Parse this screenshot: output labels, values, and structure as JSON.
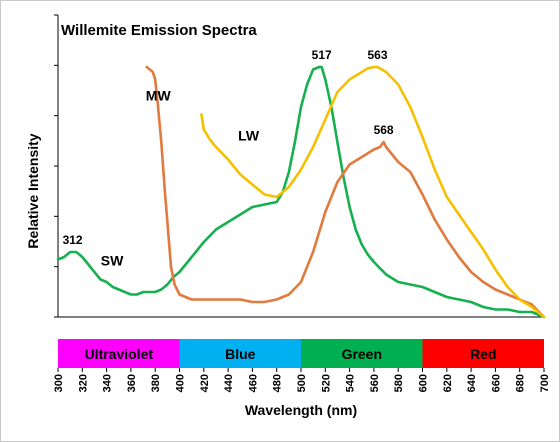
{
  "chart_data": {
    "type": "line",
    "title": "Willemite Emission Spectra",
    "xlabel": "Wavelength (nm)",
    "ylabel": "Relative Intensity",
    "xlim": [
      300,
      700
    ],
    "ylim": [
      0,
      1.0
    ],
    "x_ticks": [
      300,
      320,
      340,
      360,
      380,
      400,
      420,
      440,
      460,
      480,
      500,
      520,
      540,
      560,
      580,
      600,
      620,
      640,
      660,
      680,
      700
    ],
    "grid": false,
    "legend": "none (curves labeled directly)",
    "bands": [
      {
        "label": "Ultraviolet",
        "from": 300,
        "to": 400,
        "color": "#ff00ff"
      },
      {
        "label": "Blue",
        "from": 400,
        "to": 500,
        "color": "#00b0f0"
      },
      {
        "label": "Green",
        "from": 500,
        "to": 600,
        "color": "#00b050"
      },
      {
        "label": "Red",
        "from": 600,
        "to": 700,
        "color": "#ff0000"
      }
    ],
    "series": [
      {
        "name": "SW",
        "color": "#16b050",
        "x": [
          300,
          305,
          310,
          315,
          320,
          325,
          330,
          335,
          340,
          345,
          350,
          355,
          360,
          365,
          370,
          375,
          380,
          385,
          390,
          395,
          400,
          410,
          420,
          430,
          440,
          450,
          460,
          470,
          480,
          485,
          490,
          495,
          500,
          505,
          510,
          515,
          517,
          520,
          525,
          530,
          535,
          540,
          545,
          550,
          555,
          560,
          570,
          580,
          590,
          600,
          610,
          620,
          630,
          640,
          650,
          660,
          670,
          680,
          690,
          700
        ],
        "values": [
          0.23,
          0.24,
          0.26,
          0.26,
          0.24,
          0.21,
          0.18,
          0.15,
          0.14,
          0.12,
          0.11,
          0.1,
          0.09,
          0.09,
          0.1,
          0.1,
          0.1,
          0.11,
          0.13,
          0.16,
          0.18,
          0.24,
          0.3,
          0.35,
          0.38,
          0.41,
          0.44,
          0.45,
          0.46,
          0.5,
          0.58,
          0.7,
          0.84,
          0.93,
          0.99,
          1.0,
          1.0,
          0.95,
          0.84,
          0.7,
          0.56,
          0.44,
          0.35,
          0.29,
          0.25,
          0.22,
          0.17,
          0.14,
          0.13,
          0.12,
          0.1,
          0.08,
          0.07,
          0.06,
          0.04,
          0.03,
          0.03,
          0.02,
          0.02,
          0.0
        ]
      },
      {
        "name": "MW",
        "color": "#e07a3e",
        "x": [
          373,
          378,
          380,
          382,
          385,
          388,
          390,
          393,
          396,
          400,
          405,
          410,
          420,
          430,
          440,
          450,
          460,
          470,
          480,
          490,
          500,
          510,
          520,
          530,
          540,
          550,
          560,
          565,
          568,
          570,
          580,
          590,
          600,
          610,
          620,
          630,
          640,
          650,
          660,
          670,
          680,
          690,
          700
        ],
        "values": [
          1.0,
          0.98,
          0.95,
          0.86,
          0.7,
          0.5,
          0.38,
          0.2,
          0.13,
          0.09,
          0.08,
          0.07,
          0.07,
          0.07,
          0.07,
          0.07,
          0.06,
          0.06,
          0.07,
          0.09,
          0.14,
          0.26,
          0.42,
          0.54,
          0.61,
          0.64,
          0.67,
          0.68,
          0.7,
          0.68,
          0.62,
          0.58,
          0.49,
          0.39,
          0.31,
          0.24,
          0.18,
          0.14,
          0.11,
          0.09,
          0.07,
          0.05,
          0.0
        ]
      },
      {
        "name": "LW",
        "color": "#f5c000",
        "x": [
          418,
          420,
          425,
          430,
          440,
          450,
          460,
          470,
          480,
          490,
          500,
          510,
          520,
          530,
          540,
          550,
          555,
          560,
          563,
          570,
          580,
          590,
          600,
          610,
          620,
          630,
          640,
          650,
          660,
          670,
          680,
          690,
          700
        ],
        "values": [
          0.81,
          0.75,
          0.71,
          0.68,
          0.63,
          0.57,
          0.53,
          0.49,
          0.48,
          0.52,
          0.59,
          0.68,
          0.79,
          0.9,
          0.95,
          0.98,
          0.995,
          1.0,
          1.0,
          0.98,
          0.93,
          0.84,
          0.72,
          0.59,
          0.48,
          0.41,
          0.34,
          0.27,
          0.19,
          0.12,
          0.07,
          0.04,
          0.0
        ]
      }
    ],
    "annotations": [
      {
        "text": "312",
        "x": 312,
        "y": 0.26
      },
      {
        "text": "517",
        "x": 517,
        "y": 1.0
      },
      {
        "text": "563",
        "x": 563,
        "y": 1.0
      },
      {
        "text": "568",
        "x": 568,
        "y": 0.7
      },
      {
        "text": "SW",
        "x": 327,
        "y": 0.23
      },
      {
        "text": "MW",
        "x": 364,
        "y": 0.89
      },
      {
        "text": "LW",
        "x": 440,
        "y": 0.73
      }
    ]
  }
}
